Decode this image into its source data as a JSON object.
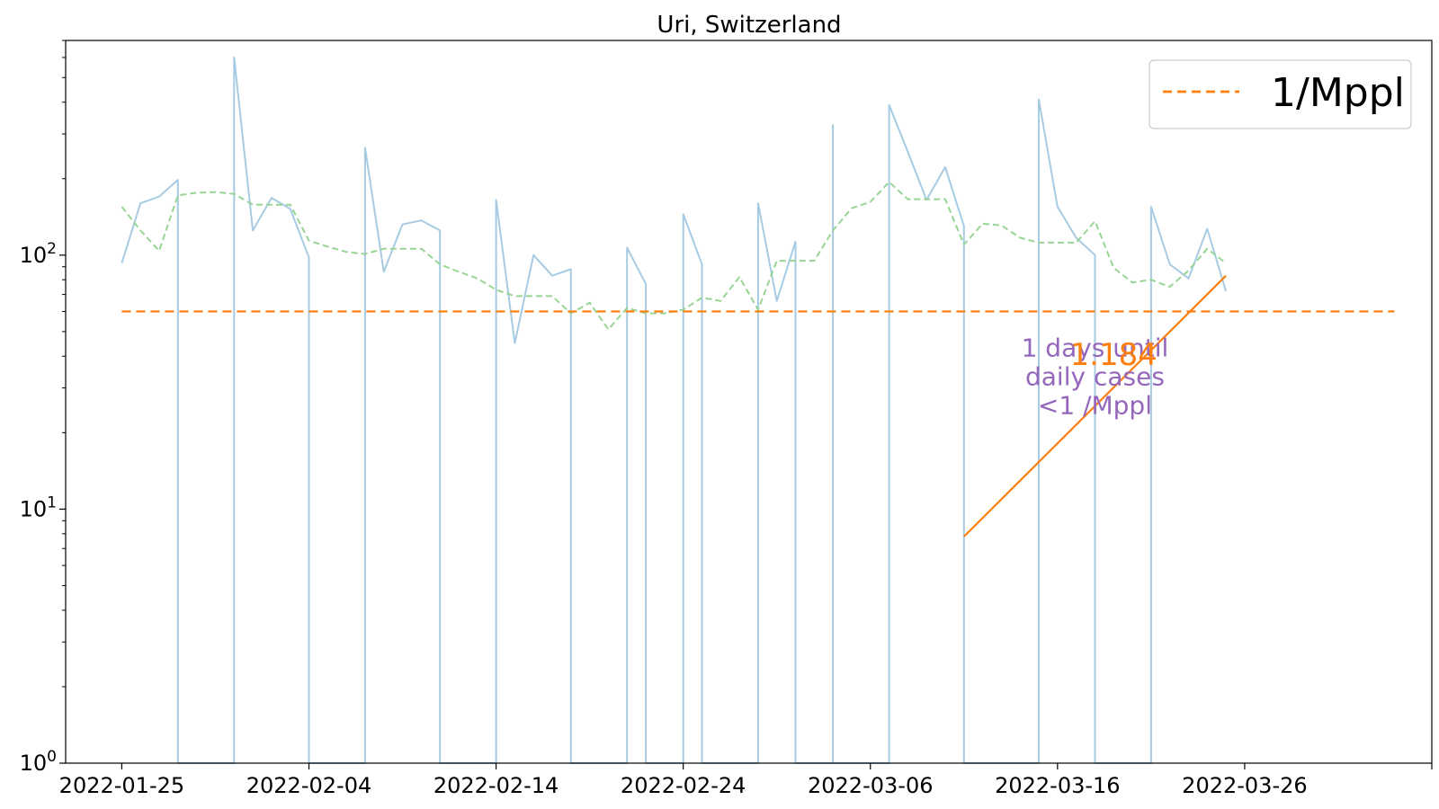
{
  "chart_data": {
    "type": "line",
    "title": "Uri, Switzerland",
    "xlabel": "",
    "ylabel": "",
    "yscale": "log",
    "ylim": [
      1,
      700
    ],
    "xlim": [
      "2022-01-22",
      "2022-04-05"
    ],
    "x_ticks": [
      "2022-01-25",
      "2022-02-04",
      "2022-02-14",
      "2022-02-24",
      "2022-03-06",
      "2022-03-16",
      "2022-03-26",
      "2022-04-05"
    ],
    "x_tick_labels": [
      "2022-01-25",
      "2022-02-04",
      "2022-02-14",
      "2022-02-24",
      "2022-03-06",
      "2022-03-16",
      "2022-03-26",
      ""
    ],
    "y_ticks": [
      {
        "value": 1,
        "base": "10",
        "exp": "0"
      },
      {
        "value": 10,
        "base": "10",
        "exp": "1"
      },
      {
        "value": 100,
        "base": "10",
        "exp": "2"
      }
    ],
    "grid": false,
    "legend": {
      "position": "top-right",
      "entries": [
        "1/Mppl"
      ]
    },
    "series": [
      {
        "style": "solid",
        "color": "#a6cbe3",
        "points": [
          [
            "2022-01-25",
            93
          ],
          [
            "2022-01-26",
            160
          ],
          [
            "2022-01-27",
            170
          ],
          [
            "2022-01-28",
            198
          ],
          [
            "2022-01-28",
            1
          ],
          [
            "2022-01-31",
            1
          ],
          [
            "2022-01-31",
            600
          ],
          [
            "2022-02-01",
            125
          ],
          [
            "2022-02-02",
            168
          ],
          [
            "2022-02-03",
            152
          ],
          [
            "2022-02-04",
            98
          ],
          [
            "2022-02-04",
            1
          ],
          [
            "2022-02-07",
            1
          ],
          [
            "2022-02-07",
            265
          ],
          [
            "2022-02-08",
            86
          ],
          [
            "2022-02-09",
            132
          ],
          [
            "2022-02-10",
            137
          ],
          [
            "2022-02-11",
            125
          ],
          [
            "2022-02-11",
            1
          ],
          [
            "2022-02-14",
            1
          ],
          [
            "2022-02-14",
            165
          ],
          [
            "2022-02-15",
            45
          ],
          [
            "2022-02-16",
            100
          ],
          [
            "2022-02-17",
            83
          ],
          [
            "2022-02-18",
            88
          ],
          [
            "2022-02-18",
            1
          ],
          [
            "2022-02-21",
            1
          ],
          [
            "2022-02-21",
            107
          ],
          [
            "2022-02-22",
            77
          ],
          [
            "2022-02-22",
            1
          ],
          [
            "2022-02-24",
            1
          ],
          [
            "2022-02-24",
            145
          ],
          [
            "2022-02-25",
            92
          ],
          [
            "2022-02-25",
            1
          ],
          [
            "2022-02-28",
            1
          ],
          [
            "2022-02-28",
            160
          ],
          [
            "2022-03-01",
            66
          ],
          [
            "2022-03-02",
            113
          ],
          [
            "2022-03-02",
            1
          ],
          [
            "2022-03-04",
            1
          ],
          [
            "2022-03-04",
            325
          ],
          [
            "2022-03-04",
            1
          ],
          [
            "2022-03-07",
            1
          ],
          [
            "2022-03-07",
            390
          ],
          [
            "2022-03-08",
            255
          ],
          [
            "2022-03-09",
            165
          ],
          [
            "2022-03-10",
            222
          ],
          [
            "2022-03-11",
            130
          ],
          [
            "2022-03-11",
            1
          ],
          [
            "2022-03-15",
            1
          ],
          [
            "2022-03-15",
            410
          ],
          [
            "2022-03-16",
            155
          ],
          [
            "2022-03-17",
            117
          ],
          [
            "2022-03-18",
            100
          ],
          [
            "2022-03-18",
            1
          ],
          [
            "2022-03-21",
            1
          ],
          [
            "2022-03-21",
            155
          ],
          [
            "2022-03-22",
            92
          ],
          [
            "2022-03-23",
            81
          ],
          [
            "2022-03-24",
            127
          ],
          [
            "2022-03-25",
            72
          ]
        ]
      },
      {
        "style": "dashed",
        "color": "#98d594",
        "points": [
          [
            "2022-01-25",
            155
          ],
          [
            "2022-01-26",
            125
          ],
          [
            "2022-01-27",
            104
          ],
          [
            "2022-01-28",
            172
          ],
          [
            "2022-01-29",
            176
          ],
          [
            "2022-01-30",
            177
          ],
          [
            "2022-01-31",
            174
          ],
          [
            "2022-02-01",
            158
          ],
          [
            "2022-02-02",
            158
          ],
          [
            "2022-02-03",
            158
          ],
          [
            "2022-02-04",
            114
          ],
          [
            "2022-02-05",
            108
          ],
          [
            "2022-02-06",
            103
          ],
          [
            "2022-02-07",
            101
          ],
          [
            "2022-02-08",
            106
          ],
          [
            "2022-02-09",
            106
          ],
          [
            "2022-02-10",
            106
          ],
          [
            "2022-02-11",
            92
          ],
          [
            "2022-02-12",
            86
          ],
          [
            "2022-02-13",
            81
          ],
          [
            "2022-02-14",
            73
          ],
          [
            "2022-02-15",
            69
          ],
          [
            "2022-02-16",
            69
          ],
          [
            "2022-02-17",
            69
          ],
          [
            "2022-02-18",
            59
          ],
          [
            "2022-02-19",
            65
          ],
          [
            "2022-02-20",
            51
          ],
          [
            "2022-02-21",
            62
          ],
          [
            "2022-02-22",
            59
          ],
          [
            "2022-02-23",
            59
          ],
          [
            "2022-02-24",
            61
          ],
          [
            "2022-02-25",
            68
          ],
          [
            "2022-02-26",
            66
          ],
          [
            "2022-02-27",
            82
          ],
          [
            "2022-02-28",
            61
          ],
          [
            "2022-03-01",
            95
          ],
          [
            "2022-03-02",
            95
          ],
          [
            "2022-03-03",
            95
          ],
          [
            "2022-03-04",
            125
          ],
          [
            "2022-03-05",
            153
          ],
          [
            "2022-03-06",
            162
          ],
          [
            "2022-03-07",
            194
          ],
          [
            "2022-03-08",
            166
          ],
          [
            "2022-03-09",
            166
          ],
          [
            "2022-03-10",
            166
          ],
          [
            "2022-03-11",
            110
          ],
          [
            "2022-03-12",
            133
          ],
          [
            "2022-03-13",
            131
          ],
          [
            "2022-03-14",
            117
          ],
          [
            "2022-03-15",
            112
          ],
          [
            "2022-03-16",
            112
          ],
          [
            "2022-03-17",
            112
          ],
          [
            "2022-03-18",
            136
          ],
          [
            "2022-03-19",
            89
          ],
          [
            "2022-03-20",
            78
          ],
          [
            "2022-03-21",
            80
          ],
          [
            "2022-03-22",
            75
          ],
          [
            "2022-03-23",
            87
          ],
          [
            "2022-03-24",
            106
          ],
          [
            "2022-03-25",
            93
          ]
        ]
      },
      {
        "name": "1/Mppl",
        "style": "dashed",
        "color": "#ff7f0e",
        "points": [
          [
            "2022-01-25",
            60
          ],
          [
            "2022-04-03",
            60
          ]
        ]
      },
      {
        "style": "solid",
        "color": "#ff7f0e",
        "points": [
          [
            "2022-03-11",
            7.8
          ],
          [
            "2022-03-25",
            83
          ]
        ]
      }
    ],
    "annotations": [
      {
        "lines": [
          "1 days until",
          "daily cases",
          "<1 /Mppl"
        ],
        "x": "2022-03-18",
        "y": 40,
        "color": "#9467bd"
      },
      {
        "text": "1.184",
        "x": "2022-03-19",
        "y": 37,
        "color": "#ff7f0e"
      }
    ]
  }
}
